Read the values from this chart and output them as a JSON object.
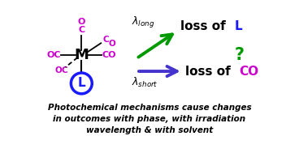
{
  "bg_color": "#ffffff",
  "ligand_color": "#cc00cc",
  "M_color": "#000000",
  "L_circle_color": "#1a1aff",
  "arrow1_color": "#009900",
  "arrow2_color": "#4433cc",
  "caption_line1": "Photochemical mechanisms cause changes",
  "caption_line2": "in outcomes with phase, with irradiation",
  "caption_line3": "wavelength & with solvent"
}
